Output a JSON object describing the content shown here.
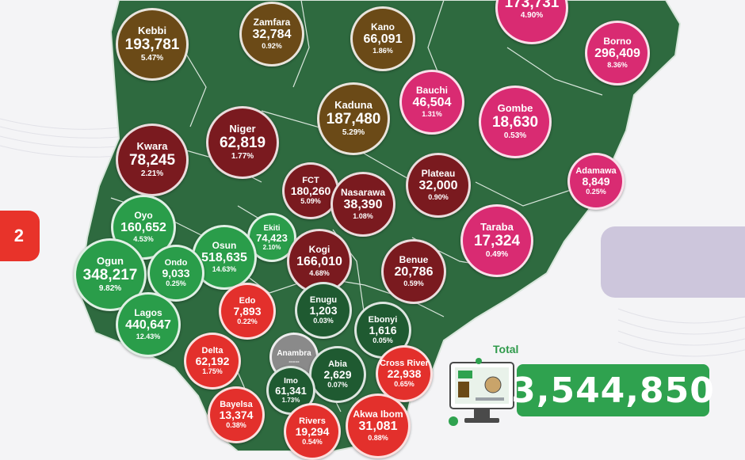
{
  "total": {
    "label": "Total",
    "value": "3,544,850"
  },
  "side_badge": "2",
  "anambra_dashes": "-----",
  "colors": {
    "map_green": "#2e6a3f",
    "map_border": "#d9e6dc",
    "brown": "#6b4a17",
    "maroon": "#7a1a1f",
    "pink": "#d92b72",
    "green": "#2a9d4a",
    "dark_green": "#1f5a31",
    "red": "#e3302c",
    "grey": "#8a8a8a"
  },
  "states": [
    {
      "name": "Kebbi",
      "value": "193,781",
      "pct": "5.47%",
      "color": "brown"
    },
    {
      "name": "Zamfara",
      "value": "32,784",
      "pct": "0.92%",
      "color": "brown"
    },
    {
      "name": "Kano",
      "value": "66,091",
      "pct": "1.86%",
      "color": "brown"
    },
    {
      "name": "",
      "value": "173,731",
      "pct": "4.90%",
      "color": "pink"
    },
    {
      "name": "Borno",
      "value": "296,409",
      "pct": "8.36%",
      "color": "pink"
    },
    {
      "name": "Bauchi",
      "value": "46,504",
      "pct": "1.31%",
      "color": "pink"
    },
    {
      "name": "Kaduna",
      "value": "187,480",
      "pct": "5.29%",
      "color": "brown"
    },
    {
      "name": "Gombe",
      "value": "18,630",
      "pct": "0.53%",
      "color": "pink"
    },
    {
      "name": "Kwara",
      "value": "78,245",
      "pct": "2.21%",
      "color": "maroon"
    },
    {
      "name": "Niger",
      "value": "62,819",
      "pct": "1.77%",
      "color": "maroon"
    },
    {
      "name": "FCT",
      "value": "180,260",
      "pct": "5.09%",
      "color": "maroon"
    },
    {
      "name": "Nasarawa",
      "value": "38,390",
      "pct": "1.08%",
      "color": "maroon"
    },
    {
      "name": "Plateau",
      "value": "32,000",
      "pct": "0.90%",
      "color": "maroon"
    },
    {
      "name": "Adamawa",
      "value": "8,849",
      "pct": "0.25%",
      "color": "pink"
    },
    {
      "name": "Oyo",
      "value": "160,652",
      "pct": "4.53%",
      "color": "green"
    },
    {
      "name": "Ekiti",
      "value": "74,423",
      "pct": "2.10%",
      "color": "green"
    },
    {
      "name": "Osun",
      "value": "518,635",
      "pct": "14.63%",
      "color": "green"
    },
    {
      "name": "Kogi",
      "value": "166,010",
      "pct": "4.68%",
      "color": "maroon"
    },
    {
      "name": "Taraba",
      "value": "17,324",
      "pct": "0.49%",
      "color": "pink"
    },
    {
      "name": "Ogun",
      "value": "348,217",
      "pct": "9.82%",
      "color": "green"
    },
    {
      "name": "Ondo",
      "value": "9,033",
      "pct": "0.25%",
      "color": "green"
    },
    {
      "name": "Benue",
      "value": "20,786",
      "pct": "0.59%",
      "color": "maroon"
    },
    {
      "name": "Edo",
      "value": "7,893",
      "pct": "0.22%",
      "color": "red"
    },
    {
      "name": "Enugu",
      "value": "1,203",
      "pct": "0.03%",
      "color": "dark_green"
    },
    {
      "name": "Lagos",
      "value": "440,647",
      "pct": "12.43%",
      "color": "green"
    },
    {
      "name": "Ebonyi",
      "value": "1,616",
      "pct": "0.05%",
      "color": "dark_green"
    },
    {
      "name": "Anambra",
      "value": "",
      "pct": "",
      "color": "grey"
    },
    {
      "name": "Delta",
      "value": "62,192",
      "pct": "1.75%",
      "color": "red"
    },
    {
      "name": "Abia",
      "value": "2,629",
      "pct": "0.07%",
      "color": "dark_green"
    },
    {
      "name": "Cross River",
      "value": "22,938",
      "pct": "0.65%",
      "color": "red"
    },
    {
      "name": "Imo",
      "value": "61,341",
      "pct": "1.73%",
      "color": "dark_green"
    },
    {
      "name": "Bayelsa",
      "value": "13,374",
      "pct": "0.38%",
      "color": "red"
    },
    {
      "name": "Rivers",
      "value": "19,294",
      "pct": "0.54%",
      "color": "red"
    },
    {
      "name": "Akwa Ibom",
      "value": "31,081",
      "pct": "0.88%",
      "color": "red"
    }
  ]
}
